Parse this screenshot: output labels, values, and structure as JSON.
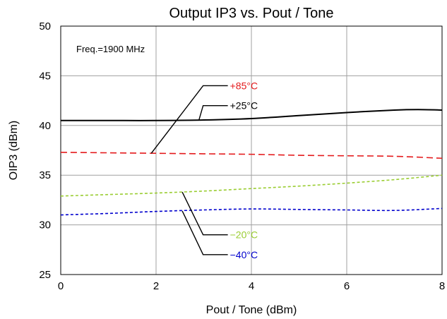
{
  "chart_data": {
    "type": "line",
    "title": "Output IP3 vs. Pout / Tone",
    "xlabel": "Pout / Tone (dBm)",
    "ylabel": "OIP3 (dBm)",
    "xlim": [
      0,
      8
    ],
    "ylim": [
      25,
      50
    ],
    "x_ticks": [
      "0",
      "2",
      "4",
      "6",
      "8"
    ],
    "y_ticks": [
      "25",
      "30",
      "35",
      "40",
      "45",
      "50"
    ],
    "grid": true,
    "annotation": "Freq.=1900 MHz",
    "series": [
      {
        "name": "+85°C",
        "color": "#e41a1c",
        "dash": "dashed",
        "x": [
          0,
          1,
          2,
          3,
          4,
          5,
          6,
          7,
          8
        ],
        "y": [
          37.3,
          37.25,
          37.2,
          37.15,
          37.1,
          37.0,
          36.95,
          36.9,
          36.7
        ]
      },
      {
        "name": "+25°C",
        "color": "#000000",
        "dash": "solid",
        "x": [
          0,
          1,
          2,
          3,
          4,
          5,
          6,
          7,
          7.5,
          8
        ],
        "y": [
          40.5,
          40.5,
          40.5,
          40.55,
          40.7,
          41.0,
          41.3,
          41.55,
          41.6,
          41.55
        ]
      },
      {
        "name": "−20°C",
        "color": "#9acd32",
        "dash": "short-dash",
        "x": [
          0,
          1,
          2,
          3,
          4,
          5,
          6,
          7,
          8
        ],
        "y": [
          32.9,
          33.05,
          33.2,
          33.4,
          33.65,
          33.9,
          34.2,
          34.55,
          35.0
        ]
      },
      {
        "name": "−40°C",
        "color": "#0000cd",
        "dash": "short-dash",
        "x": [
          0,
          1,
          2,
          3,
          4,
          5,
          6,
          7,
          8
        ],
        "y": [
          31.0,
          31.15,
          31.35,
          31.5,
          31.6,
          31.55,
          31.5,
          31.45,
          31.65
        ]
      }
    ],
    "callouts": [
      {
        "series": 0,
        "label": "+85°C",
        "anchor_x": 1.9,
        "anchor_y": 37.2,
        "label_x": 3.55,
        "label_y": 44.0
      },
      {
        "series": 1,
        "label": "+25°C",
        "anchor_x": 2.9,
        "anchor_y": 40.55,
        "label_x": 3.55,
        "label_y": 42.0
      },
      {
        "series": 2,
        "label": "−20°C",
        "anchor_x": 2.55,
        "anchor_y": 33.3,
        "label_x": 3.55,
        "label_y": 29.0
      },
      {
        "series": 3,
        "label": "−40°C",
        "anchor_x": 2.55,
        "anchor_y": 31.4,
        "label_x": 3.55,
        "label_y": 27.0
      }
    ]
  }
}
